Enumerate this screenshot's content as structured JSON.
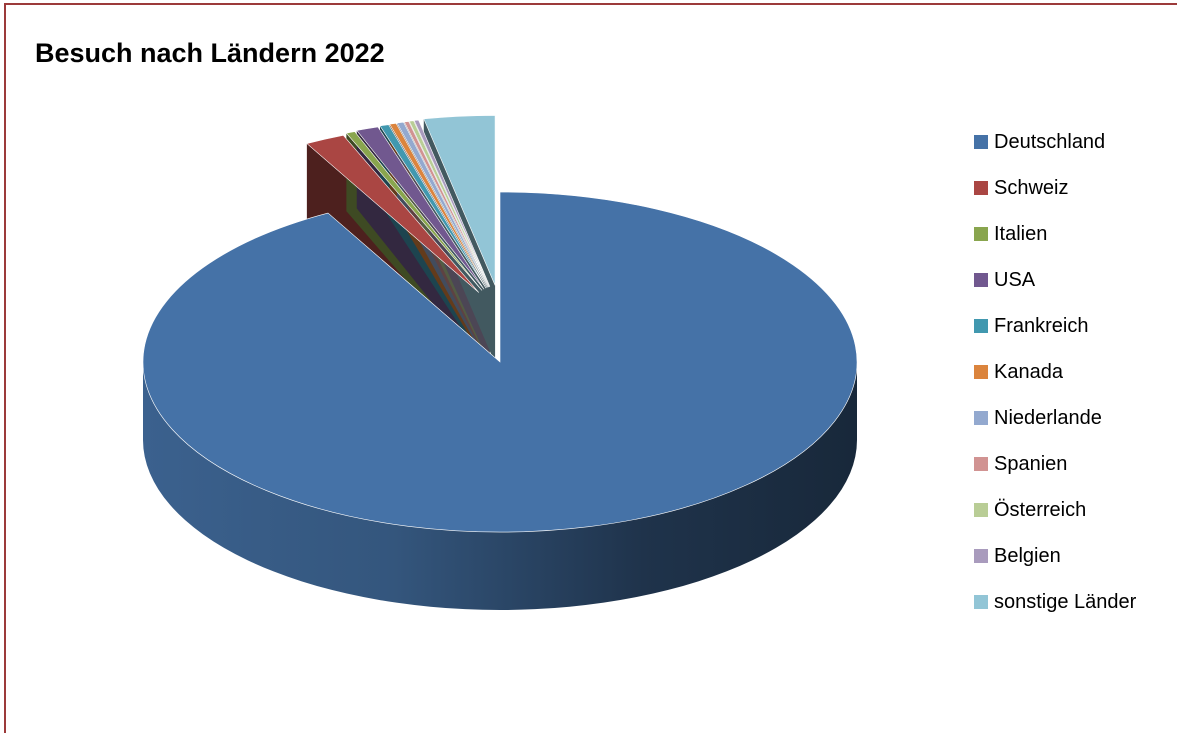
{
  "chart_data": {
    "type": "pie",
    "title": "Besuch nach Ländern 2022",
    "legend_position": "right",
    "style": "3d-exploded",
    "slices": [
      {
        "label": "Deutschland",
        "value": 92.0,
        "color": "#4572a7"
      },
      {
        "label": "Schweiz",
        "value": 1.8,
        "color": "#aa4643"
      },
      {
        "label": "Italien",
        "value": 0.4,
        "color": "#89a54e"
      },
      {
        "label": "USA",
        "value": 1.0,
        "color": "#71588f"
      },
      {
        "label": "Frankreich",
        "value": 0.4,
        "color": "#4198af"
      },
      {
        "label": "Kanada",
        "value": 0.3,
        "color": "#db843d"
      },
      {
        "label": "Niederlande",
        "value": 0.3,
        "color": "#93a9cf"
      },
      {
        "label": "Spanien",
        "value": 0.2,
        "color": "#d19392"
      },
      {
        "label": "Österreich",
        "value": 0.2,
        "color": "#b9cd96"
      },
      {
        "label": "Belgien",
        "value": 0.2,
        "color": "#a99bbd"
      },
      {
        "label": "sonstige Länder",
        "value": 3.2,
        "color": "#92c5d6"
      }
    ]
  }
}
